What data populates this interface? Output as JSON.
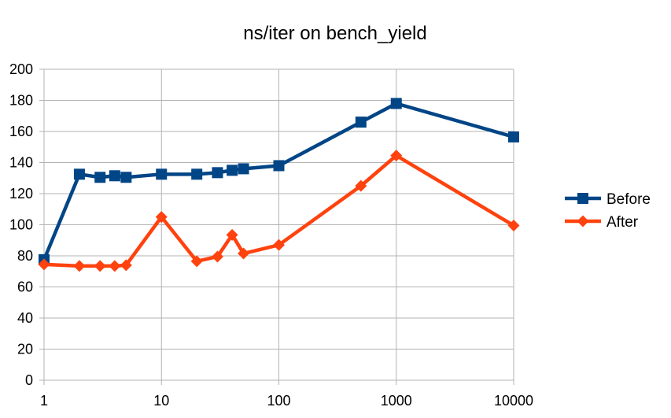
{
  "chart_data": {
    "type": "line",
    "title": "ns/iter on bench_yield",
    "xscale": "log",
    "x": [
      1,
      2,
      3,
      4,
      5,
      10,
      20,
      30,
      40,
      50,
      100,
      500,
      1000,
      10000
    ],
    "xticks": [
      "1",
      "10",
      "100",
      "1000",
      "10000"
    ],
    "ylim": [
      0,
      200
    ],
    "yticks": [
      "0",
      "20",
      "40",
      "60",
      "80",
      "100",
      "120",
      "140",
      "160",
      "180",
      "200"
    ],
    "grid": true,
    "legend_position": "right",
    "series": [
      {
        "name": "Before",
        "color": "#004586",
        "marker": "square",
        "values": [
          77.5,
          132.5,
          130.5,
          131.5,
          130.5,
          132.5,
          132.5,
          133.5,
          135,
          136,
          138,
          166,
          178,
          156.5
        ]
      },
      {
        "name": "After",
        "color": "#ff420e",
        "marker": "diamond",
        "values": [
          74.5,
          73.5,
          73.5,
          73.5,
          74,
          105,
          76.5,
          79.5,
          93.5,
          81.5,
          87,
          125,
          144.5,
          99.5
        ]
      }
    ]
  }
}
